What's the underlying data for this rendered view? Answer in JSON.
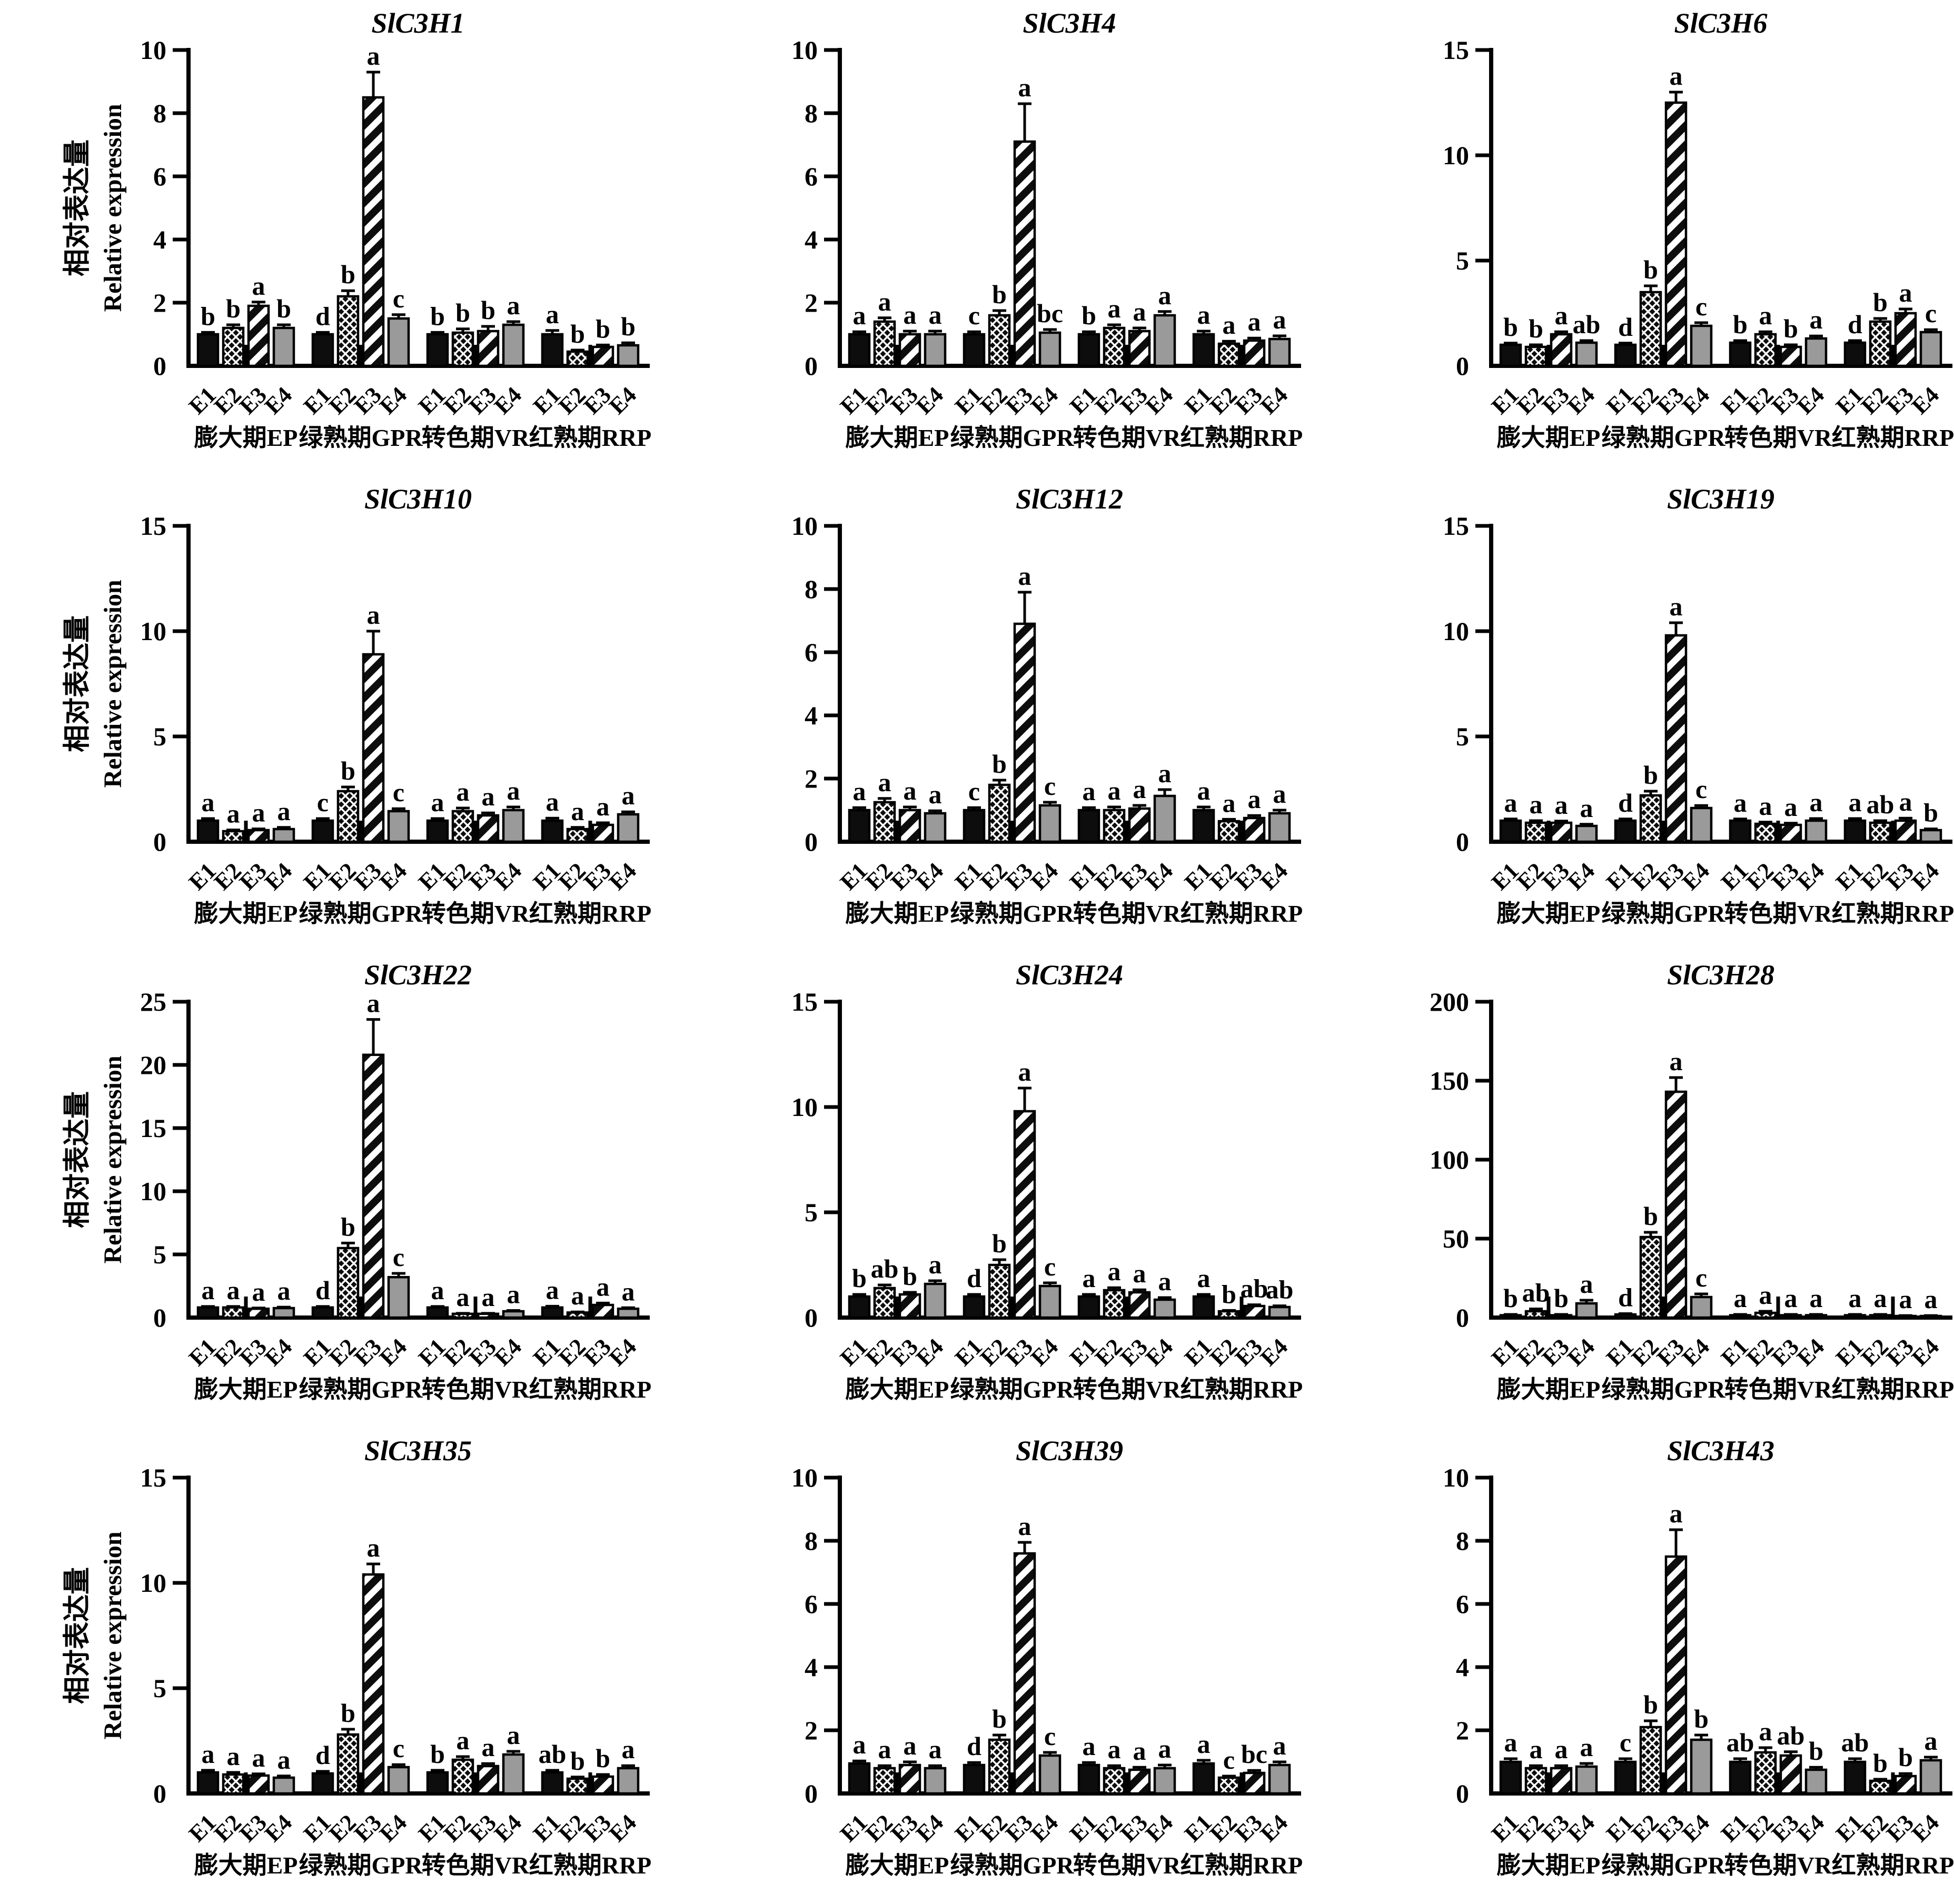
{
  "figure": {
    "ylabel_zh": "相对表达量",
    "ylabel_en": "Relative expression",
    "series_labels": [
      "E1",
      "E2",
      "E3",
      "E4"
    ],
    "group_labels": [
      "膨大期EP",
      "绿熟期GPR",
      "转色期VR",
      "红熟期RRP"
    ],
    "series_styles": [
      "solid-black",
      "crosshatch",
      "diagonal-stripe",
      "solid-gray"
    ],
    "colors": {
      "ink": "#000000",
      "bar_gray": "#9a9a9a",
      "background": "#ffffff"
    }
  },
  "chart_data": [
    {
      "type": "bar",
      "title": "SlC3H1",
      "ylim": [
        0,
        10
      ],
      "yticks": [
        0,
        2,
        4,
        6,
        8,
        10
      ],
      "groups": [
        "膨大期EP",
        "绿熟期GPR",
        "转色期VR",
        "红熟期RRP"
      ],
      "series": [
        "E1",
        "E2",
        "E3",
        "E4"
      ],
      "values": [
        [
          1.0,
          1.2,
          1.9,
          1.2
        ],
        [
          1.0,
          2.2,
          8.5,
          1.5
        ],
        [
          1.0,
          1.05,
          1.1,
          1.3
        ],
        [
          1.0,
          0.45,
          0.6,
          0.65
        ]
      ],
      "errors": [
        [
          0.06,
          0.1,
          0.12,
          0.1
        ],
        [
          0.06,
          0.18,
          0.8,
          0.12
        ],
        [
          0.06,
          0.12,
          0.15,
          0.1
        ],
        [
          0.12,
          0.05,
          0.06,
          0.08
        ]
      ],
      "letters": [
        [
          "b",
          "b",
          "a",
          "b"
        ],
        [
          "d",
          "b",
          "a",
          "c"
        ],
        [
          "b",
          "b",
          "b",
          "a"
        ],
        [
          "a",
          "b",
          "b",
          "b"
        ]
      ]
    },
    {
      "type": "bar",
      "title": "SlC3H4",
      "ylim": [
        0,
        10
      ],
      "yticks": [
        0,
        2,
        4,
        6,
        8,
        10
      ],
      "groups": [
        "膨大期EP",
        "绿熟期GPR",
        "转色期VR",
        "红熟期RRP"
      ],
      "series": [
        "E1",
        "E2",
        "E3",
        "E4"
      ],
      "values": [
        [
          1.0,
          1.4,
          1.0,
          1.0
        ],
        [
          1.0,
          1.6,
          7.1,
          1.05
        ],
        [
          1.0,
          1.2,
          1.1,
          1.6
        ],
        [
          1.0,
          0.7,
          0.8,
          0.85
        ]
      ],
      "errors": [
        [
          0.08,
          0.12,
          0.1,
          0.1
        ],
        [
          0.08,
          0.15,
          1.2,
          0.1
        ],
        [
          0.08,
          0.1,
          0.1,
          0.12
        ],
        [
          0.1,
          0.08,
          0.08,
          0.1
        ]
      ],
      "letters": [
        [
          "a",
          "a",
          "a",
          "a"
        ],
        [
          "c",
          "b",
          "a",
          "bc"
        ],
        [
          "b",
          "a",
          "a",
          "a"
        ],
        [
          "a",
          "a",
          "a",
          "a"
        ]
      ]
    },
    {
      "type": "bar",
      "title": "SlC3H6",
      "ylim": [
        0,
        15
      ],
      "yticks": [
        0,
        5,
        10,
        15
      ],
      "groups": [
        "膨大期EP",
        "绿熟期GPR",
        "转色期VR",
        "红熟期RRP"
      ],
      "series": [
        "E1",
        "E2",
        "E3",
        "E4"
      ],
      "values": [
        [
          1.0,
          0.9,
          1.5,
          1.1
        ],
        [
          1.0,
          3.5,
          12.5,
          1.9
        ],
        [
          1.1,
          1.5,
          0.9,
          1.3
        ],
        [
          1.1,
          2.1,
          2.5,
          1.6
        ]
      ],
      "errors": [
        [
          0.08,
          0.1,
          0.12,
          0.1
        ],
        [
          0.08,
          0.3,
          0.5,
          0.15
        ],
        [
          0.1,
          0.12,
          0.1,
          0.12
        ],
        [
          0.1,
          0.15,
          0.2,
          0.12
        ]
      ],
      "letters": [
        [
          "b",
          "b",
          "a",
          "ab"
        ],
        [
          "d",
          "b",
          "a",
          "c"
        ],
        [
          "b",
          "a",
          "b",
          "a"
        ],
        [
          "d",
          "b",
          "a",
          "c"
        ]
      ]
    },
    {
      "type": "bar",
      "title": "SlC3H10",
      "ylim": [
        0,
        15
      ],
      "yticks": [
        0,
        5,
        10,
        15
      ],
      "groups": [
        "膨大期EP",
        "绿熟期GPR",
        "转色期VR",
        "红熟期RRP"
      ],
      "series": [
        "E1",
        "E2",
        "E3",
        "E4"
      ],
      "values": [
        [
          1.0,
          0.5,
          0.55,
          0.6
        ],
        [
          1.0,
          2.4,
          8.9,
          1.45
        ],
        [
          1.0,
          1.45,
          1.25,
          1.5
        ],
        [
          1.0,
          0.6,
          0.8,
          1.3
        ]
      ],
      "errors": [
        [
          0.1,
          0.06,
          0.06,
          0.08
        ],
        [
          0.1,
          0.2,
          1.1,
          0.12
        ],
        [
          0.1,
          0.15,
          0.12,
          0.15
        ],
        [
          0.12,
          0.08,
          0.1,
          0.12
        ]
      ],
      "letters": [
        [
          "a",
          "a",
          "a",
          "a"
        ],
        [
          "c",
          "b",
          "a",
          "c"
        ],
        [
          "a",
          "a",
          "a",
          "a"
        ],
        [
          "a",
          "a",
          "a",
          "a"
        ]
      ]
    },
    {
      "type": "bar",
      "title": "SlC3H12",
      "ylim": [
        0,
        10
      ],
      "yticks": [
        0,
        2,
        4,
        6,
        8,
        10
      ],
      "groups": [
        "膨大期EP",
        "绿熟期GPR",
        "转色期VR",
        "红熟期RRP"
      ],
      "series": [
        "E1",
        "E2",
        "E3",
        "E4"
      ],
      "values": [
        [
          1.0,
          1.25,
          1.0,
          0.9
        ],
        [
          1.0,
          1.8,
          6.9,
          1.15
        ],
        [
          1.0,
          1.0,
          1.05,
          1.45
        ],
        [
          1.0,
          0.65,
          0.75,
          0.9
        ]
      ],
      "errors": [
        [
          0.08,
          0.12,
          0.1,
          0.08
        ],
        [
          0.08,
          0.15,
          1.0,
          0.1
        ],
        [
          0.08,
          0.1,
          0.1,
          0.2
        ],
        [
          0.1,
          0.06,
          0.08,
          0.1
        ]
      ],
      "letters": [
        [
          "a",
          "a",
          "a",
          "a"
        ],
        [
          "c",
          "b",
          "a",
          "c"
        ],
        [
          "a",
          "a",
          "a",
          "a"
        ],
        [
          "a",
          "a",
          "a",
          "a"
        ]
      ]
    },
    {
      "type": "bar",
      "title": "SlC3H19",
      "ylim": [
        0,
        15
      ],
      "yticks": [
        0,
        5,
        10,
        15
      ],
      "groups": [
        "膨大期EP",
        "绿熟期GPR",
        "转色期VR",
        "红熟期RRP"
      ],
      "series": [
        "E1",
        "E2",
        "E3",
        "E4"
      ],
      "values": [
        [
          1.0,
          0.9,
          0.9,
          0.75
        ],
        [
          1.0,
          2.2,
          9.8,
          1.6
        ],
        [
          1.0,
          0.85,
          0.8,
          1.0
        ],
        [
          1.0,
          0.9,
          1.0,
          0.55
        ]
      ],
      "errors": [
        [
          0.08,
          0.1,
          0.08,
          0.08
        ],
        [
          0.08,
          0.2,
          0.6,
          0.12
        ],
        [
          0.08,
          0.08,
          0.08,
          0.1
        ],
        [
          0.1,
          0.1,
          0.12,
          0.06
        ]
      ],
      "letters": [
        [
          "a",
          "a",
          "a",
          "a"
        ],
        [
          "d",
          "b",
          "a",
          "c"
        ],
        [
          "a",
          "a",
          "a",
          "a"
        ],
        [
          "a",
          "ab",
          "a",
          "b"
        ]
      ]
    },
    {
      "type": "bar",
      "title": "SlC3H22",
      "ylim": [
        0,
        25
      ],
      "yticks": [
        0,
        5,
        10,
        15,
        20,
        25
      ],
      "groups": [
        "膨大期EP",
        "绿熟期GPR",
        "转色期VR",
        "红熟期RRP"
      ],
      "series": [
        "E1",
        "E2",
        "E3",
        "E4"
      ],
      "values": [
        [
          0.8,
          0.8,
          0.7,
          0.75
        ],
        [
          0.8,
          5.5,
          20.8,
          3.2
        ],
        [
          0.8,
          0.3,
          0.3,
          0.5
        ],
        [
          0.8,
          0.4,
          1.0,
          0.7
        ]
      ],
      "errors": [
        [
          0.08,
          0.08,
          0.06,
          0.08
        ],
        [
          0.08,
          0.4,
          2.8,
          0.3
        ],
        [
          0.08,
          0.04,
          0.04,
          0.06
        ],
        [
          0.1,
          0.05,
          0.15,
          0.08
        ]
      ],
      "letters": [
        [
          "a",
          "a",
          "a",
          "a"
        ],
        [
          "d",
          "b",
          "a",
          "c"
        ],
        [
          "a",
          "a",
          "a",
          "a"
        ],
        [
          "a",
          "a",
          "a",
          "a"
        ]
      ]
    },
    {
      "type": "bar",
      "title": "SlC3H24",
      "ylim": [
        0,
        15
      ],
      "yticks": [
        0,
        5,
        10,
        15
      ],
      "groups": [
        "膨大期EP",
        "绿熟期GPR",
        "转色期VR",
        "红熟期RRP"
      ],
      "series": [
        "E1",
        "E2",
        "E3",
        "E4"
      ],
      "values": [
        [
          1.0,
          1.4,
          1.1,
          1.6
        ],
        [
          1.0,
          2.5,
          9.8,
          1.5
        ],
        [
          1.0,
          1.3,
          1.2,
          0.85
        ],
        [
          1.0,
          0.3,
          0.55,
          0.5
        ]
      ],
      "errors": [
        [
          0.1,
          0.15,
          0.1,
          0.15
        ],
        [
          0.1,
          0.25,
          1.1,
          0.15
        ],
        [
          0.1,
          0.12,
          0.12,
          0.1
        ],
        [
          0.1,
          0.04,
          0.06,
          0.06
        ]
      ],
      "letters": [
        [
          "b",
          "ab",
          "b",
          "a"
        ],
        [
          "d",
          "b",
          "a",
          "c"
        ],
        [
          "a",
          "a",
          "a",
          "a"
        ],
        [
          "a",
          "b",
          "ab",
          "ab"
        ]
      ]
    },
    {
      "type": "bar",
      "title": "SlC3H28",
      "ylim": [
        0,
        200
      ],
      "yticks": [
        0,
        50,
        100,
        150,
        200
      ],
      "groups": [
        "膨大期EP",
        "绿熟期GPR",
        "转色期VR",
        "红熟期RRP"
      ],
      "series": [
        "E1",
        "E2",
        "E3",
        "E4"
      ],
      "values": [
        [
          1.5,
          4,
          1.5,
          9
        ],
        [
          2,
          51,
          143,
          13
        ],
        [
          1.5,
          3,
          1.5,
          1.5
        ],
        [
          1.5,
          1.5,
          1,
          1
        ]
      ],
      "errors": [
        [
          0.5,
          1.5,
          0.5,
          2
        ],
        [
          0.5,
          3,
          9,
          2
        ],
        [
          0.5,
          1,
          0.5,
          0.5
        ],
        [
          0.5,
          0.5,
          0.3,
          0.3
        ]
      ],
      "letters": [
        [
          "b",
          "ab",
          "b",
          "a"
        ],
        [
          "d",
          "b",
          "a",
          "c"
        ],
        [
          "a",
          "a",
          "a",
          "a"
        ],
        [
          "a",
          "a",
          "a",
          "a"
        ]
      ]
    },
    {
      "type": "bar",
      "title": "SlC3H35",
      "ylim": [
        0,
        15
      ],
      "yticks": [
        0,
        5,
        10,
        15
      ],
      "groups": [
        "膨大期EP",
        "绿熟期GPR",
        "转色期VR",
        "红熟期RRP"
      ],
      "series": [
        "E1",
        "E2",
        "E3",
        "E4"
      ],
      "values": [
        [
          1.0,
          0.9,
          0.85,
          0.75
        ],
        [
          0.95,
          2.8,
          10.4,
          1.25
        ],
        [
          1.0,
          1.6,
          1.3,
          1.85
        ],
        [
          1.0,
          0.7,
          0.8,
          1.2
        ]
      ],
      "errors": [
        [
          0.1,
          0.1,
          0.08,
          0.08
        ],
        [
          0.1,
          0.25,
          0.5,
          0.12
        ],
        [
          0.1,
          0.15,
          0.12,
          0.15
        ],
        [
          0.1,
          0.08,
          0.1,
          0.12
        ]
      ],
      "letters": [
        [
          "a",
          "a",
          "a",
          "a"
        ],
        [
          "d",
          "b",
          "a",
          "c"
        ],
        [
          "b",
          "a",
          "a",
          "a"
        ],
        [
          "ab",
          "b",
          "b",
          "a"
        ]
      ]
    },
    {
      "type": "bar",
      "title": "SlC3H39",
      "ylim": [
        0,
        10
      ],
      "yticks": [
        0,
        2,
        4,
        6,
        8,
        10
      ],
      "groups": [
        "膨大期EP",
        "绿熟期GPR",
        "转色期VR",
        "红熟期RRP"
      ],
      "series": [
        "E1",
        "E2",
        "E3",
        "E4"
      ],
      "values": [
        [
          0.95,
          0.8,
          0.9,
          0.8
        ],
        [
          0.9,
          1.7,
          7.6,
          1.2
        ],
        [
          0.9,
          0.8,
          0.75,
          0.8
        ],
        [
          0.95,
          0.5,
          0.65,
          0.9
        ]
      ],
      "errors": [
        [
          0.08,
          0.08,
          0.1,
          0.08
        ],
        [
          0.08,
          0.15,
          0.35,
          0.1
        ],
        [
          0.08,
          0.08,
          0.08,
          0.1
        ],
        [
          0.1,
          0.05,
          0.08,
          0.1
        ]
      ],
      "letters": [
        [
          "a",
          "a",
          "a",
          "a"
        ],
        [
          "d",
          "b",
          "a",
          "c"
        ],
        [
          "a",
          "a",
          "a",
          "a"
        ],
        [
          "a",
          "c",
          "bc",
          "a"
        ]
      ]
    },
    {
      "type": "bar",
      "title": "SlC3H43",
      "ylim": [
        0,
        10
      ],
      "yticks": [
        0,
        2,
        4,
        6,
        8,
        10
      ],
      "groups": [
        "膨大期EP",
        "绿熟期GPR",
        "转色期VR",
        "红熟期RRP"
      ],
      "series": [
        "E1",
        "E2",
        "E3",
        "E4"
      ],
      "values": [
        [
          1.0,
          0.8,
          0.8,
          0.85
        ],
        [
          1.0,
          2.1,
          7.5,
          1.7
        ],
        [
          1.0,
          1.3,
          1.2,
          0.75
        ],
        [
          1.0,
          0.4,
          0.55,
          1.05
        ]
      ],
      "errors": [
        [
          0.1,
          0.08,
          0.08,
          0.1
        ],
        [
          0.1,
          0.2,
          0.85,
          0.15
        ],
        [
          0.1,
          0.15,
          0.12,
          0.08
        ],
        [
          0.1,
          0.05,
          0.08,
          0.1
        ]
      ],
      "letters": [
        [
          "a",
          "a",
          "a",
          "a"
        ],
        [
          "c",
          "b",
          "a",
          "b"
        ],
        [
          "ab",
          "a",
          "ab",
          "b"
        ],
        [
          "ab",
          "b",
          "b",
          "a"
        ]
      ]
    }
  ]
}
